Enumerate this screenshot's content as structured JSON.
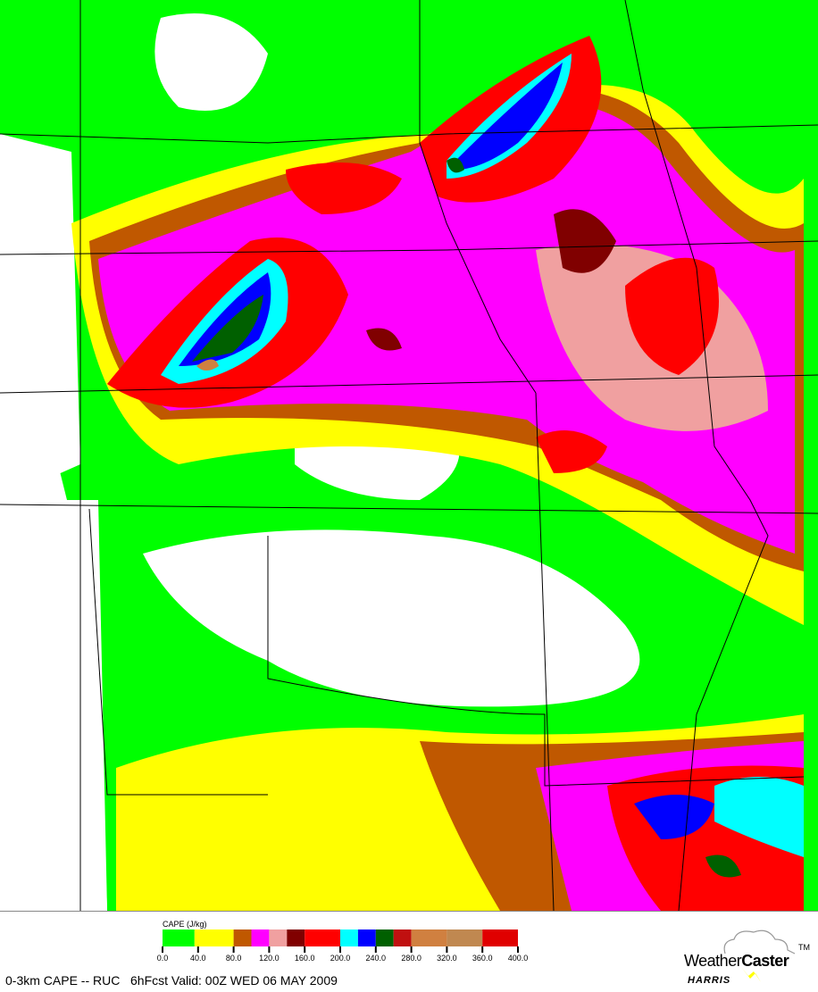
{
  "map": {
    "field": "0-3km CAPE",
    "background_color": "#ffffff",
    "boundary_color": "#000000"
  },
  "legend": {
    "title": "CAPE (J/kg)",
    "range": [
      0,
      400
    ],
    "tick_labels": [
      "0.0",
      "40.0",
      "80.0",
      "120.0",
      "160.0",
      "200.0",
      "240.0",
      "280.0",
      "320.0",
      "360.0",
      "400.0"
    ],
    "bins": [
      {
        "from": 0,
        "to": 36,
        "color": "#00ff00"
      },
      {
        "from": 36,
        "to": 80,
        "color": "#ffff00"
      },
      {
        "from": 80,
        "to": 100,
        "color": "#c05800"
      },
      {
        "from": 100,
        "to": 120,
        "color": "#ff00ff"
      },
      {
        "from": 120,
        "to": 140,
        "color": "#f0a0a0"
      },
      {
        "from": 140,
        "to": 160,
        "color": "#800000"
      },
      {
        "from": 160,
        "to": 200,
        "color": "#ff0000"
      },
      {
        "from": 200,
        "to": 220,
        "color": "#00ffff"
      },
      {
        "from": 220,
        "to": 240,
        "color": "#0000ff"
      },
      {
        "from": 240,
        "to": 260,
        "color": "#006000"
      },
      {
        "from": 260,
        "to": 280,
        "color": "#c01010"
      },
      {
        "from": 280,
        "to": 320,
        "color": "#d08040"
      },
      {
        "from": 320,
        "to": 360,
        "color": "#c08850"
      },
      {
        "from": 360,
        "to": 400,
        "color": "#e00000"
      }
    ]
  },
  "footer": {
    "title": "0-3km CAPE -- RUC   6hFcst Valid: 00Z WED 06 MAY 2009"
  },
  "logo": {
    "word_light": "Weather",
    "word_bold": "Caster",
    "tm": "TM",
    "company": "HARRIS"
  }
}
